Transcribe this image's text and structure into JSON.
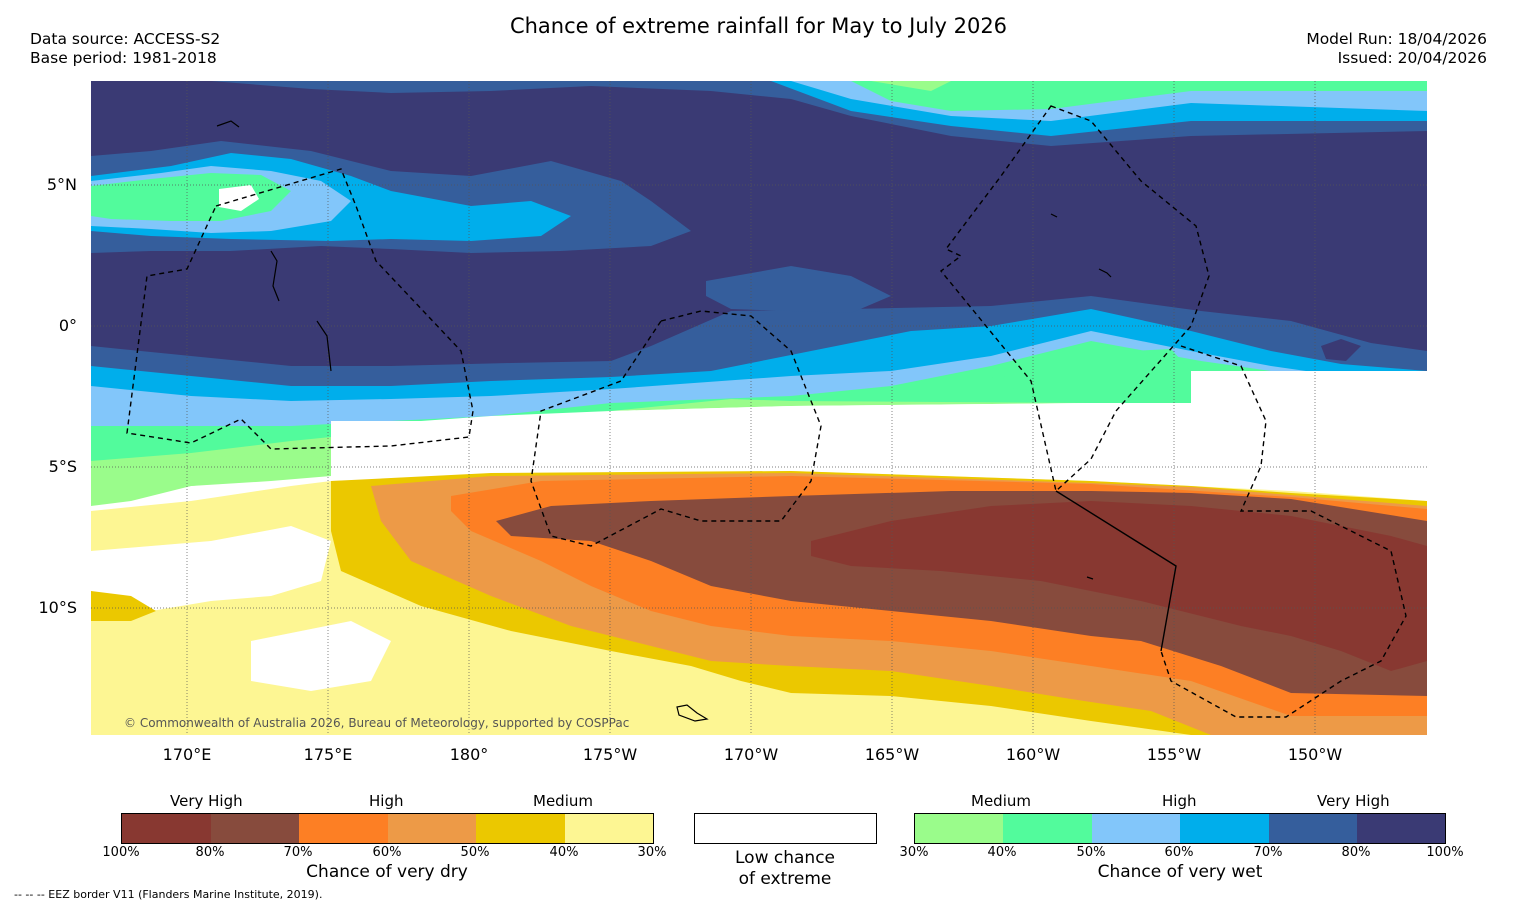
{
  "header": {
    "title": "Chance of extreme rainfall for May to July 2026",
    "data_source": "Data source: ACCESS-S2",
    "base_period": "Base period: 1981-2018",
    "model_run": "Model Run: 18/04/2026",
    "issued": "Issued: 20/04/2026"
  },
  "map": {
    "lat_labels": [
      "5°N",
      "0°",
      "5°S",
      "10°S"
    ],
    "lon_labels": [
      "170°E",
      "175°E",
      "180°",
      "175°W",
      "170°W",
      "165°W",
      "160°W",
      "155°W",
      "150°W"
    ],
    "copyright": "© Commonwealth of Australia 2026, Bureau of Meteorology, supported by COSPPac"
  },
  "legend": {
    "dry": {
      "categories": [
        "Very High",
        "High",
        "Medium"
      ],
      "ticks": [
        "100%",
        "80%",
        "70%",
        "60%",
        "50%",
        "40%",
        "30%"
      ],
      "colors": [
        "#883831",
        "#874b3d",
        "#fd7f24",
        "#ed9a47",
        "#ebc800",
        "#fdf693"
      ],
      "title": "Chance of very dry"
    },
    "low": {
      "title_line1": "Low chance",
      "title_line2": "of extreme",
      "color": "#ffffff"
    },
    "wet": {
      "categories": [
        "Medium",
        "High",
        "Very High"
      ],
      "ticks": [
        "30%",
        "40%",
        "50%",
        "60%",
        "70%",
        "80%",
        "100%"
      ],
      "colors": [
        "#9afc8b",
        "#52fb9c",
        "#82c6fa",
        "#00aeeb",
        "#355e9c",
        "#3a3a74"
      ],
      "title": "Chance of very wet"
    }
  },
  "footer": "--  --  -- EEZ border V11 (Flanders Marine Institute, 2019)."
}
